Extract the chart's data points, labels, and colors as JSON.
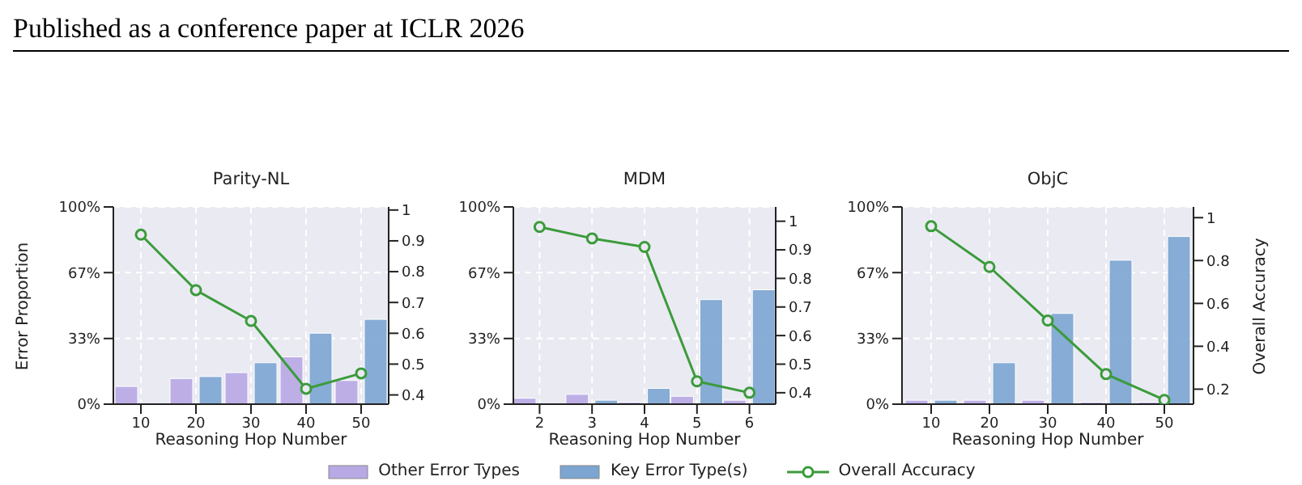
{
  "chart_data": [
    {
      "type": "bar",
      "title": "Parity-NL",
      "annotations": [
        "Published as a conference paper at ICLR 2026"
      ],
      "xlabel": "Reasoning Hop Number",
      "ylabel": "Error Proportion",
      "categories": [
        "10",
        "20",
        "30",
        "40",
        "50"
      ],
      "series": [
        {
          "name": "Other Error Types",
          "type": "bar",
          "color": "#b8a9e4",
          "values": [
            9,
            13,
            16,
            24,
            12
          ]
        },
        {
          "name": "Key Error Type(s)",
          "type": "bar",
          "color": "#7ca5d1",
          "values": [
            0,
            14,
            21,
            36,
            43
          ]
        },
        {
          "name": "Overall Accuracy",
          "type": "line",
          "axis": "y2",
          "color": "#3b9b3b",
          "values": [
            0.92,
            0.74,
            0.64,
            0.42,
            0.47
          ]
        }
      ],
      "ylim": [
        0,
        100
      ],
      "yticks": [
        {
          "value": 0,
          "label": "0%"
        },
        {
          "value": 33.3,
          "label": "33%"
        },
        {
          "value": 66.7,
          "label": "67%"
        },
        {
          "value": 100,
          "label": "100%"
        }
      ],
      "y2lim": [
        0.37,
        1.01
      ],
      "y2ticks": [
        0.4,
        0.5,
        0.6,
        0.7,
        0.8,
        0.9,
        1.0
      ],
      "grid": true,
      "legend": "bottom",
      "marker": "circle",
      "line_style": "solid"
    },
    {
      "type": "bar",
      "title": "MDM",
      "xlabel": "Reasoning Hop Number",
      "categories": [
        "2",
        "3",
        "4",
        "5",
        "6"
      ],
      "series": [
        {
          "type": "bar",
          "color": "#b8a9e4",
          "values": [
            3,
            5,
            1,
            4,
            2
          ]
        },
        {
          "type": "bar",
          "color": "#7ca5d1",
          "values": [
            0,
            2,
            8,
            53,
            58
          ]
        },
        {
          "type": "line",
          "axis": "y2",
          "color": "#3b9b3b",
          "values": [
            0.98,
            0.94,
            0.91,
            0.44,
            0.4
          ]
        }
      ],
      "ylim": [
        0,
        100
      ],
      "yticks": [
        {
          "value": 0,
          "label": "0%"
        },
        {
          "value": 33.3,
          "label": "33%"
        },
        {
          "value": 66.7,
          "label": "67%"
        },
        {
          "value": 100,
          "label": "100%"
        }
      ],
      "y2lim": [
        0.36,
        1.05
      ],
      "y2ticks": [
        0.4,
        0.5,
        0.6,
        0.7,
        0.8,
        0.9,
        1.0
      ],
      "grid": true,
      "marker": "circle",
      "line_style": "solid"
    },
    {
      "type": "bar",
      "title": "ObjC",
      "xlabel": "Reasoning Hop Number",
      "y2label": "Overall Accuracy",
      "categories": [
        "10",
        "20",
        "30",
        "40",
        "50"
      ],
      "series": [
        {
          "type": "bar",
          "color": "#b8a9e4",
          "values": [
            2,
            2,
            2,
            1,
            1
          ]
        },
        {
          "type": "bar",
          "color": "#7ca5d1",
          "values": [
            2,
            21,
            46,
            73,
            85
          ]
        },
        {
          "type": "line",
          "axis": "y2",
          "color": "#3b9b3b",
          "values": [
            0.96,
            0.77,
            0.52,
            0.27,
            0.15
          ]
        }
      ],
      "ylim": [
        0,
        100
      ],
      "yticks": [
        {
          "value": 0,
          "label": "0%"
        },
        {
          "value": 33.3,
          "label": "33%"
        },
        {
          "value": 66.7,
          "label": "67%"
        },
        {
          "value": 100,
          "label": "100%"
        }
      ],
      "y2lim": [
        0.13,
        1.05
      ],
      "y2ticks": [
        0.2,
        0.4,
        0.6,
        0.8,
        1.0
      ],
      "grid": true,
      "marker": "circle",
      "line_style": "solid"
    }
  ]
}
